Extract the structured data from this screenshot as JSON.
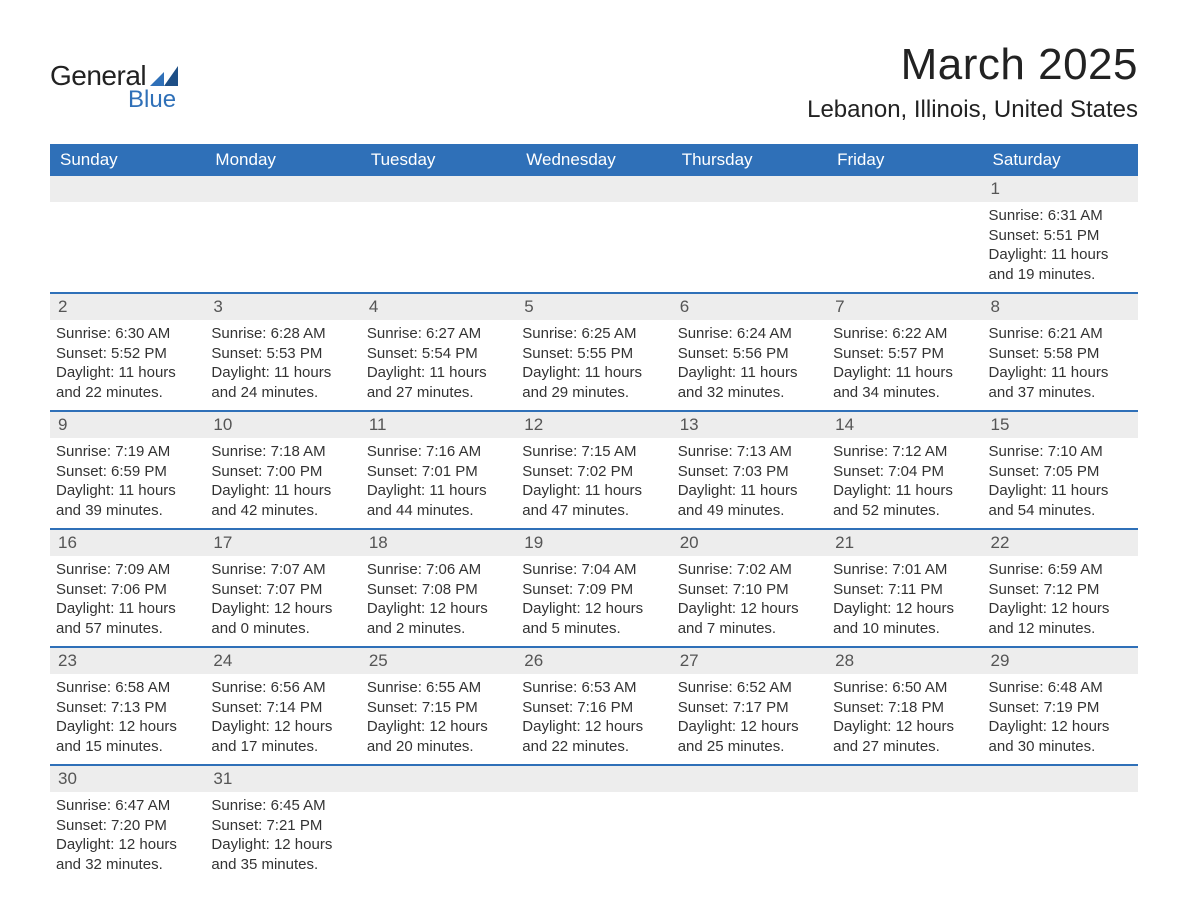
{
  "logo": {
    "general": "General",
    "blue": "Blue"
  },
  "header": {
    "month_title": "March 2025",
    "location": "Lebanon, Illinois, United States"
  },
  "colors": {
    "header_bg": "#2f70b8",
    "header_fg": "#ffffff",
    "daynum_bg": "#ededed",
    "daynum_fg": "#555555",
    "text": "#333333",
    "logo_blue": "#2f70b8",
    "row_divider": "#2f70b8"
  },
  "calendar": {
    "day_headers": [
      "Sunday",
      "Monday",
      "Tuesday",
      "Wednesday",
      "Thursday",
      "Friday",
      "Saturday"
    ],
    "weeks": [
      [
        null,
        null,
        null,
        null,
        null,
        null,
        {
          "n": "1",
          "sunrise": "Sunrise: 6:31 AM",
          "sunset": "Sunset: 5:51 PM",
          "d1": "Daylight: 11 hours",
          "d2": "and 19 minutes."
        }
      ],
      [
        {
          "n": "2",
          "sunrise": "Sunrise: 6:30 AM",
          "sunset": "Sunset: 5:52 PM",
          "d1": "Daylight: 11 hours",
          "d2": "and 22 minutes."
        },
        {
          "n": "3",
          "sunrise": "Sunrise: 6:28 AM",
          "sunset": "Sunset: 5:53 PM",
          "d1": "Daylight: 11 hours",
          "d2": "and 24 minutes."
        },
        {
          "n": "4",
          "sunrise": "Sunrise: 6:27 AM",
          "sunset": "Sunset: 5:54 PM",
          "d1": "Daylight: 11 hours",
          "d2": "and 27 minutes."
        },
        {
          "n": "5",
          "sunrise": "Sunrise: 6:25 AM",
          "sunset": "Sunset: 5:55 PM",
          "d1": "Daylight: 11 hours",
          "d2": "and 29 minutes."
        },
        {
          "n": "6",
          "sunrise": "Sunrise: 6:24 AM",
          "sunset": "Sunset: 5:56 PM",
          "d1": "Daylight: 11 hours",
          "d2": "and 32 minutes."
        },
        {
          "n": "7",
          "sunrise": "Sunrise: 6:22 AM",
          "sunset": "Sunset: 5:57 PM",
          "d1": "Daylight: 11 hours",
          "d2": "and 34 minutes."
        },
        {
          "n": "8",
          "sunrise": "Sunrise: 6:21 AM",
          "sunset": "Sunset: 5:58 PM",
          "d1": "Daylight: 11 hours",
          "d2": "and 37 minutes."
        }
      ],
      [
        {
          "n": "9",
          "sunrise": "Sunrise: 7:19 AM",
          "sunset": "Sunset: 6:59 PM",
          "d1": "Daylight: 11 hours",
          "d2": "and 39 minutes."
        },
        {
          "n": "10",
          "sunrise": "Sunrise: 7:18 AM",
          "sunset": "Sunset: 7:00 PM",
          "d1": "Daylight: 11 hours",
          "d2": "and 42 minutes."
        },
        {
          "n": "11",
          "sunrise": "Sunrise: 7:16 AM",
          "sunset": "Sunset: 7:01 PM",
          "d1": "Daylight: 11 hours",
          "d2": "and 44 minutes."
        },
        {
          "n": "12",
          "sunrise": "Sunrise: 7:15 AM",
          "sunset": "Sunset: 7:02 PM",
          "d1": "Daylight: 11 hours",
          "d2": "and 47 minutes."
        },
        {
          "n": "13",
          "sunrise": "Sunrise: 7:13 AM",
          "sunset": "Sunset: 7:03 PM",
          "d1": "Daylight: 11 hours",
          "d2": "and 49 minutes."
        },
        {
          "n": "14",
          "sunrise": "Sunrise: 7:12 AM",
          "sunset": "Sunset: 7:04 PM",
          "d1": "Daylight: 11 hours",
          "d2": "and 52 minutes."
        },
        {
          "n": "15",
          "sunrise": "Sunrise: 7:10 AM",
          "sunset": "Sunset: 7:05 PM",
          "d1": "Daylight: 11 hours",
          "d2": "and 54 minutes."
        }
      ],
      [
        {
          "n": "16",
          "sunrise": "Sunrise: 7:09 AM",
          "sunset": "Sunset: 7:06 PM",
          "d1": "Daylight: 11 hours",
          "d2": "and 57 minutes."
        },
        {
          "n": "17",
          "sunrise": "Sunrise: 7:07 AM",
          "sunset": "Sunset: 7:07 PM",
          "d1": "Daylight: 12 hours",
          "d2": "and 0 minutes."
        },
        {
          "n": "18",
          "sunrise": "Sunrise: 7:06 AM",
          "sunset": "Sunset: 7:08 PM",
          "d1": "Daylight: 12 hours",
          "d2": "and 2 minutes."
        },
        {
          "n": "19",
          "sunrise": "Sunrise: 7:04 AM",
          "sunset": "Sunset: 7:09 PM",
          "d1": "Daylight: 12 hours",
          "d2": "and 5 minutes."
        },
        {
          "n": "20",
          "sunrise": "Sunrise: 7:02 AM",
          "sunset": "Sunset: 7:10 PM",
          "d1": "Daylight: 12 hours",
          "d2": "and 7 minutes."
        },
        {
          "n": "21",
          "sunrise": "Sunrise: 7:01 AM",
          "sunset": "Sunset: 7:11 PM",
          "d1": "Daylight: 12 hours",
          "d2": "and 10 minutes."
        },
        {
          "n": "22",
          "sunrise": "Sunrise: 6:59 AM",
          "sunset": "Sunset: 7:12 PM",
          "d1": "Daylight: 12 hours",
          "d2": "and 12 minutes."
        }
      ],
      [
        {
          "n": "23",
          "sunrise": "Sunrise: 6:58 AM",
          "sunset": "Sunset: 7:13 PM",
          "d1": "Daylight: 12 hours",
          "d2": "and 15 minutes."
        },
        {
          "n": "24",
          "sunrise": "Sunrise: 6:56 AM",
          "sunset": "Sunset: 7:14 PM",
          "d1": "Daylight: 12 hours",
          "d2": "and 17 minutes."
        },
        {
          "n": "25",
          "sunrise": "Sunrise: 6:55 AM",
          "sunset": "Sunset: 7:15 PM",
          "d1": "Daylight: 12 hours",
          "d2": "and 20 minutes."
        },
        {
          "n": "26",
          "sunrise": "Sunrise: 6:53 AM",
          "sunset": "Sunset: 7:16 PM",
          "d1": "Daylight: 12 hours",
          "d2": "and 22 minutes."
        },
        {
          "n": "27",
          "sunrise": "Sunrise: 6:52 AM",
          "sunset": "Sunset: 7:17 PM",
          "d1": "Daylight: 12 hours",
          "d2": "and 25 minutes."
        },
        {
          "n": "28",
          "sunrise": "Sunrise: 6:50 AM",
          "sunset": "Sunset: 7:18 PM",
          "d1": "Daylight: 12 hours",
          "d2": "and 27 minutes."
        },
        {
          "n": "29",
          "sunrise": "Sunrise: 6:48 AM",
          "sunset": "Sunset: 7:19 PM",
          "d1": "Daylight: 12 hours",
          "d2": "and 30 minutes."
        }
      ],
      [
        {
          "n": "30",
          "sunrise": "Sunrise: 6:47 AM",
          "sunset": "Sunset: 7:20 PM",
          "d1": "Daylight: 12 hours",
          "d2": "and 32 minutes."
        },
        {
          "n": "31",
          "sunrise": "Sunrise: 6:45 AM",
          "sunset": "Sunset: 7:21 PM",
          "d1": "Daylight: 12 hours",
          "d2": "and 35 minutes."
        },
        null,
        null,
        null,
        null,
        null
      ]
    ]
  }
}
